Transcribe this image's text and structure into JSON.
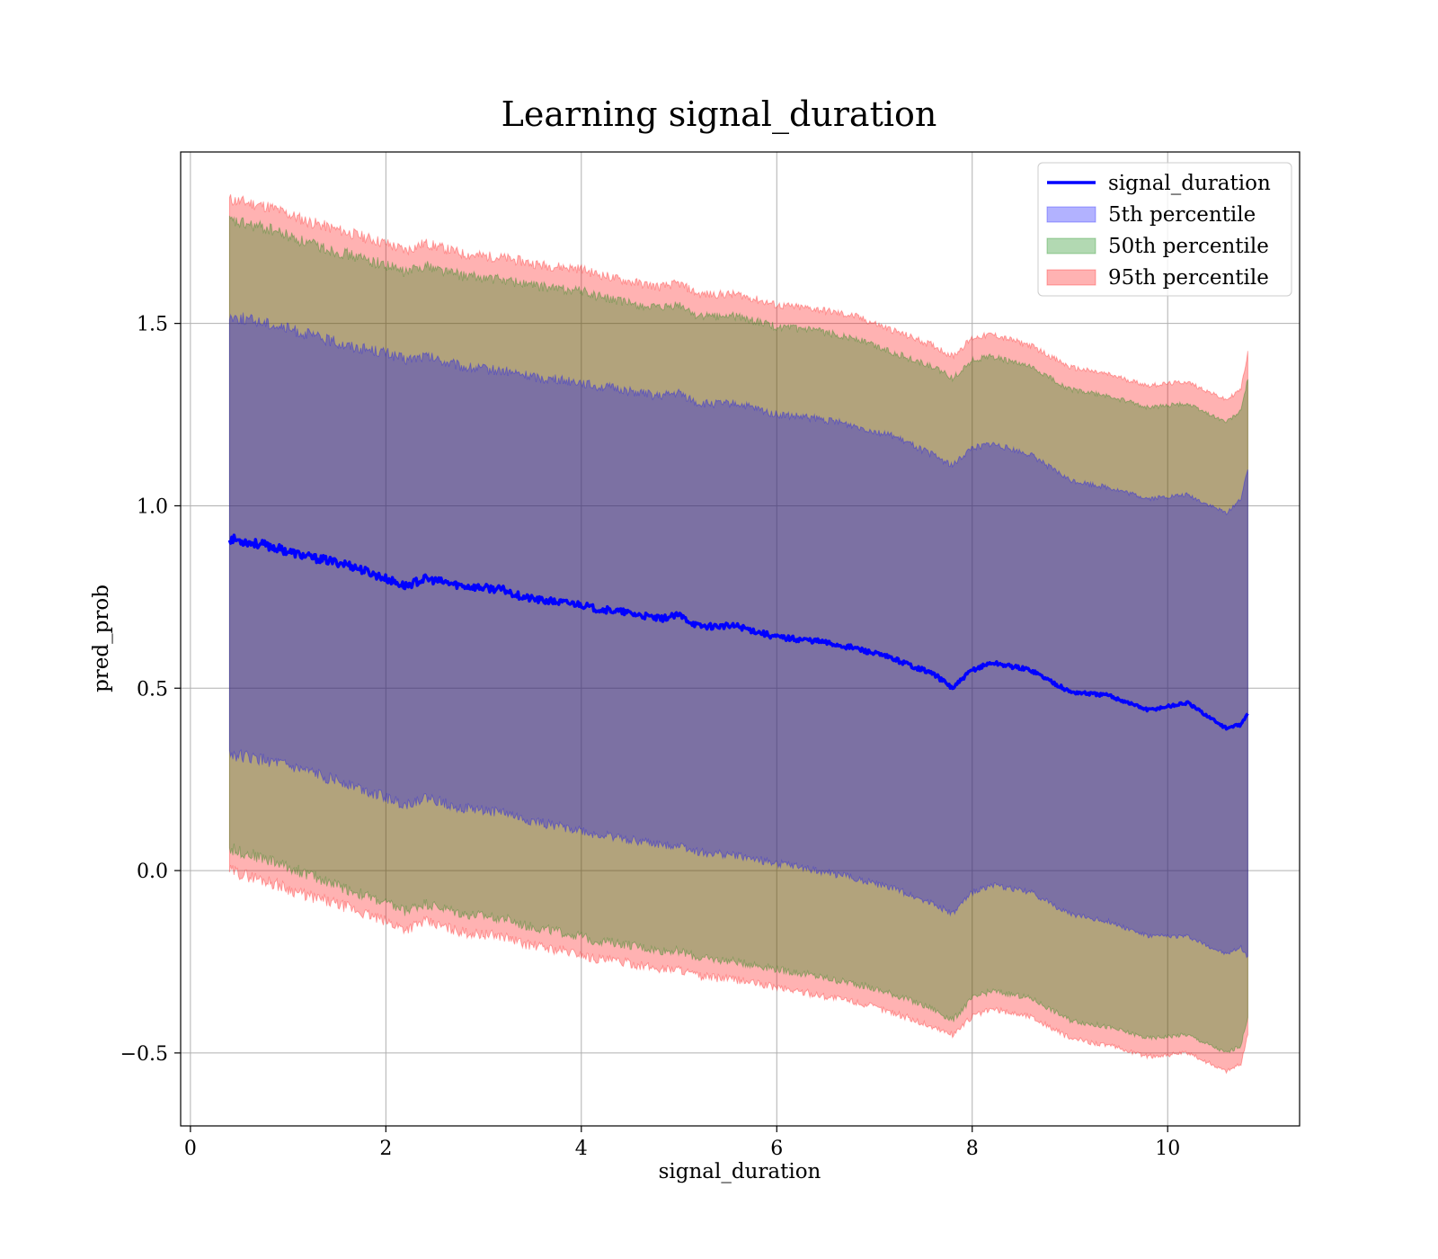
{
  "chart_data": {
    "type": "area",
    "title": "Learning signal_duration",
    "xlabel": "signal_duration",
    "ylabel": "pred_prob",
    "xlim": [
      -0.1,
      11.35
    ],
    "ylim": [
      -0.7,
      1.97
    ],
    "xticks": [
      0,
      2,
      4,
      6,
      8,
      10
    ],
    "xtick_labels": [
      "0",
      "2",
      "4",
      "6",
      "8",
      "10"
    ],
    "yticks": [
      -0.5,
      0.0,
      0.5,
      1.0,
      1.5
    ],
    "ytick_labels": [
      "−0.5",
      "0.0",
      "0.5",
      "1.0",
      "1.5"
    ],
    "grid": true,
    "legend_position": "top-right",
    "x": [
      0.4,
      0.8,
      1.2,
      1.6,
      2.0,
      2.2,
      2.4,
      2.8,
      3.2,
      3.4,
      3.6,
      4.0,
      4.1,
      4.4,
      4.8,
      5.0,
      5.2,
      5.6,
      6.0,
      6.4,
      6.8,
      7.2,
      7.6,
      7.8,
      8.0,
      8.2,
      8.6,
      9.0,
      9.4,
      9.8,
      10.2,
      10.6,
      10.75,
      10.82
    ],
    "series": [
      {
        "name": "signal_duration",
        "kind": "line",
        "color": "#0000ff",
        "values": [
          0.91,
          0.89,
          0.86,
          0.84,
          0.8,
          0.78,
          0.8,
          0.78,
          0.77,
          0.75,
          0.74,
          0.73,
          0.72,
          0.71,
          0.69,
          0.7,
          0.67,
          0.67,
          0.64,
          0.63,
          0.61,
          0.58,
          0.54,
          0.5,
          0.55,
          0.57,
          0.55,
          0.49,
          0.48,
          0.44,
          0.46,
          0.39,
          0.4,
          0.43
        ]
      },
      {
        "name": "5th percentile",
        "kind": "band",
        "color": "#0000ff",
        "lower": [
          0.32,
          0.3,
          0.27,
          0.24,
          0.2,
          0.18,
          0.2,
          0.17,
          0.16,
          0.14,
          0.13,
          0.11,
          0.1,
          0.09,
          0.07,
          0.07,
          0.05,
          0.04,
          0.02,
          0.0,
          -0.02,
          -0.05,
          -0.09,
          -0.12,
          -0.06,
          -0.04,
          -0.06,
          -0.12,
          -0.14,
          -0.18,
          -0.18,
          -0.23,
          -0.21,
          -0.24
        ],
        "upper": [
          1.52,
          1.5,
          1.47,
          1.44,
          1.42,
          1.4,
          1.41,
          1.38,
          1.37,
          1.36,
          1.35,
          1.34,
          1.33,
          1.32,
          1.3,
          1.31,
          1.28,
          1.28,
          1.25,
          1.24,
          1.22,
          1.19,
          1.14,
          1.11,
          1.16,
          1.17,
          1.14,
          1.07,
          1.05,
          1.02,
          1.03,
          0.98,
          1.02,
          1.1
        ]
      },
      {
        "name": "50th percentile",
        "kind": "band",
        "color": "#008000",
        "lower": [
          0.06,
          0.03,
          -0.01,
          -0.05,
          -0.09,
          -0.11,
          -0.09,
          -0.12,
          -0.13,
          -0.15,
          -0.16,
          -0.18,
          -0.19,
          -0.2,
          -0.22,
          -0.22,
          -0.24,
          -0.25,
          -0.27,
          -0.29,
          -0.31,
          -0.34,
          -0.38,
          -0.41,
          -0.35,
          -0.33,
          -0.35,
          -0.41,
          -0.43,
          -0.46,
          -0.45,
          -0.5,
          -0.48,
          -0.4
        ],
        "upper": [
          1.78,
          1.76,
          1.72,
          1.69,
          1.66,
          1.64,
          1.66,
          1.63,
          1.62,
          1.61,
          1.6,
          1.59,
          1.58,
          1.56,
          1.54,
          1.55,
          1.52,
          1.52,
          1.49,
          1.48,
          1.46,
          1.42,
          1.38,
          1.35,
          1.4,
          1.41,
          1.38,
          1.32,
          1.3,
          1.27,
          1.28,
          1.23,
          1.26,
          1.35
        ]
      },
      {
        "name": "95th percentile",
        "kind": "band",
        "color": "#ff0000",
        "lower": [
          0.0,
          -0.03,
          -0.07,
          -0.1,
          -0.14,
          -0.16,
          -0.14,
          -0.17,
          -0.18,
          -0.2,
          -0.21,
          -0.23,
          -0.24,
          -0.25,
          -0.27,
          -0.27,
          -0.29,
          -0.3,
          -0.32,
          -0.34,
          -0.36,
          -0.39,
          -0.43,
          -0.45,
          -0.4,
          -0.38,
          -0.4,
          -0.46,
          -0.48,
          -0.51,
          -0.5,
          -0.55,
          -0.53,
          -0.45
        ],
        "upper": [
          1.84,
          1.82,
          1.78,
          1.75,
          1.72,
          1.7,
          1.72,
          1.69,
          1.68,
          1.67,
          1.66,
          1.65,
          1.64,
          1.62,
          1.6,
          1.61,
          1.58,
          1.58,
          1.55,
          1.54,
          1.52,
          1.48,
          1.44,
          1.41,
          1.46,
          1.47,
          1.44,
          1.38,
          1.36,
          1.33,
          1.34,
          1.29,
          1.32,
          1.42
        ]
      }
    ]
  }
}
